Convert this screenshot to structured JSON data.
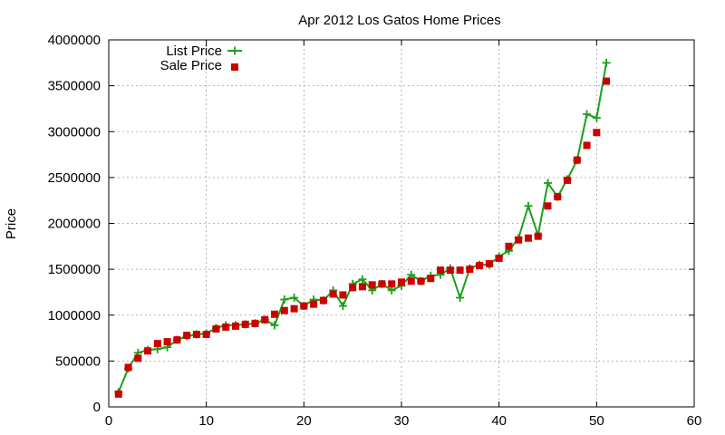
{
  "chart_data": {
    "type": "scatter",
    "title": "Apr 2012 Los Gatos Home Prices",
    "xlabel": "",
    "ylabel": "Price",
    "xlim": [
      0,
      60
    ],
    "ylim": [
      0,
      4000000
    ],
    "xticks": [
      "0",
      "10",
      "20",
      "30",
      "40",
      "50",
      "60"
    ],
    "yticks": [
      "0",
      "500000",
      "1000000",
      "1500000",
      "2000000",
      "2500000",
      "3000000",
      "3500000",
      "4000000"
    ],
    "grid": true,
    "legend_position": "top-left",
    "series": [
      {
        "name": "List Price",
        "style": "linespoints",
        "marker": "plus",
        "color": "#1aa01a",
        "x": [
          1,
          2,
          3,
          4,
          5,
          6,
          7,
          8,
          9,
          10,
          11,
          12,
          13,
          14,
          15,
          16,
          17,
          18,
          19,
          20,
          21,
          22,
          23,
          24,
          25,
          26,
          27,
          28,
          29,
          30,
          31,
          32,
          33,
          34,
          35,
          36,
          37,
          38,
          39,
          40,
          41,
          42,
          43,
          44,
          45,
          46,
          47,
          48,
          49,
          50,
          51
        ],
        "y": [
          160000,
          420000,
          590000,
          620000,
          630000,
          650000,
          730000,
          770000,
          790000,
          800000,
          860000,
          890000,
          890000,
          900000,
          910000,
          950000,
          890000,
          1170000,
          1190000,
          1100000,
          1170000,
          1160000,
          1270000,
          1100000,
          1340000,
          1390000,
          1270000,
          1340000,
          1270000,
          1320000,
          1440000,
          1370000,
          1430000,
          1440000,
          1510000,
          1190000,
          1510000,
          1550000,
          1550000,
          1640000,
          1700000,
          1840000,
          2190000,
          1870000,
          2440000,
          2290000,
          2480000,
          2690000,
          3190000,
          3150000,
          3750000
        ]
      },
      {
        "name": "Sale Price",
        "style": "points",
        "marker": "square",
        "color": "#cc0000",
        "x": [
          1,
          2,
          3,
          4,
          5,
          6,
          7,
          8,
          9,
          10,
          11,
          12,
          13,
          14,
          15,
          16,
          17,
          18,
          19,
          20,
          21,
          22,
          23,
          24,
          25,
          26,
          27,
          28,
          29,
          30,
          31,
          32,
          33,
          34,
          35,
          36,
          37,
          38,
          39,
          40,
          41,
          42,
          43,
          44,
          45,
          46,
          47,
          48,
          49,
          50,
          51
        ],
        "y": [
          140000,
          430000,
          530000,
          610000,
          690000,
          710000,
          730000,
          780000,
          790000,
          790000,
          850000,
          870000,
          880000,
          900000,
          910000,
          950000,
          1010000,
          1050000,
          1070000,
          1100000,
          1120000,
          1160000,
          1230000,
          1220000,
          1300000,
          1310000,
          1330000,
          1340000,
          1340000,
          1360000,
          1370000,
          1370000,
          1400000,
          1490000,
          1490000,
          1490000,
          1500000,
          1540000,
          1560000,
          1620000,
          1750000,
          1820000,
          1840000,
          1860000,
          2190000,
          2290000,
          2470000,
          2690000,
          2850000,
          2990000,
          3550000
        ]
      }
    ]
  }
}
